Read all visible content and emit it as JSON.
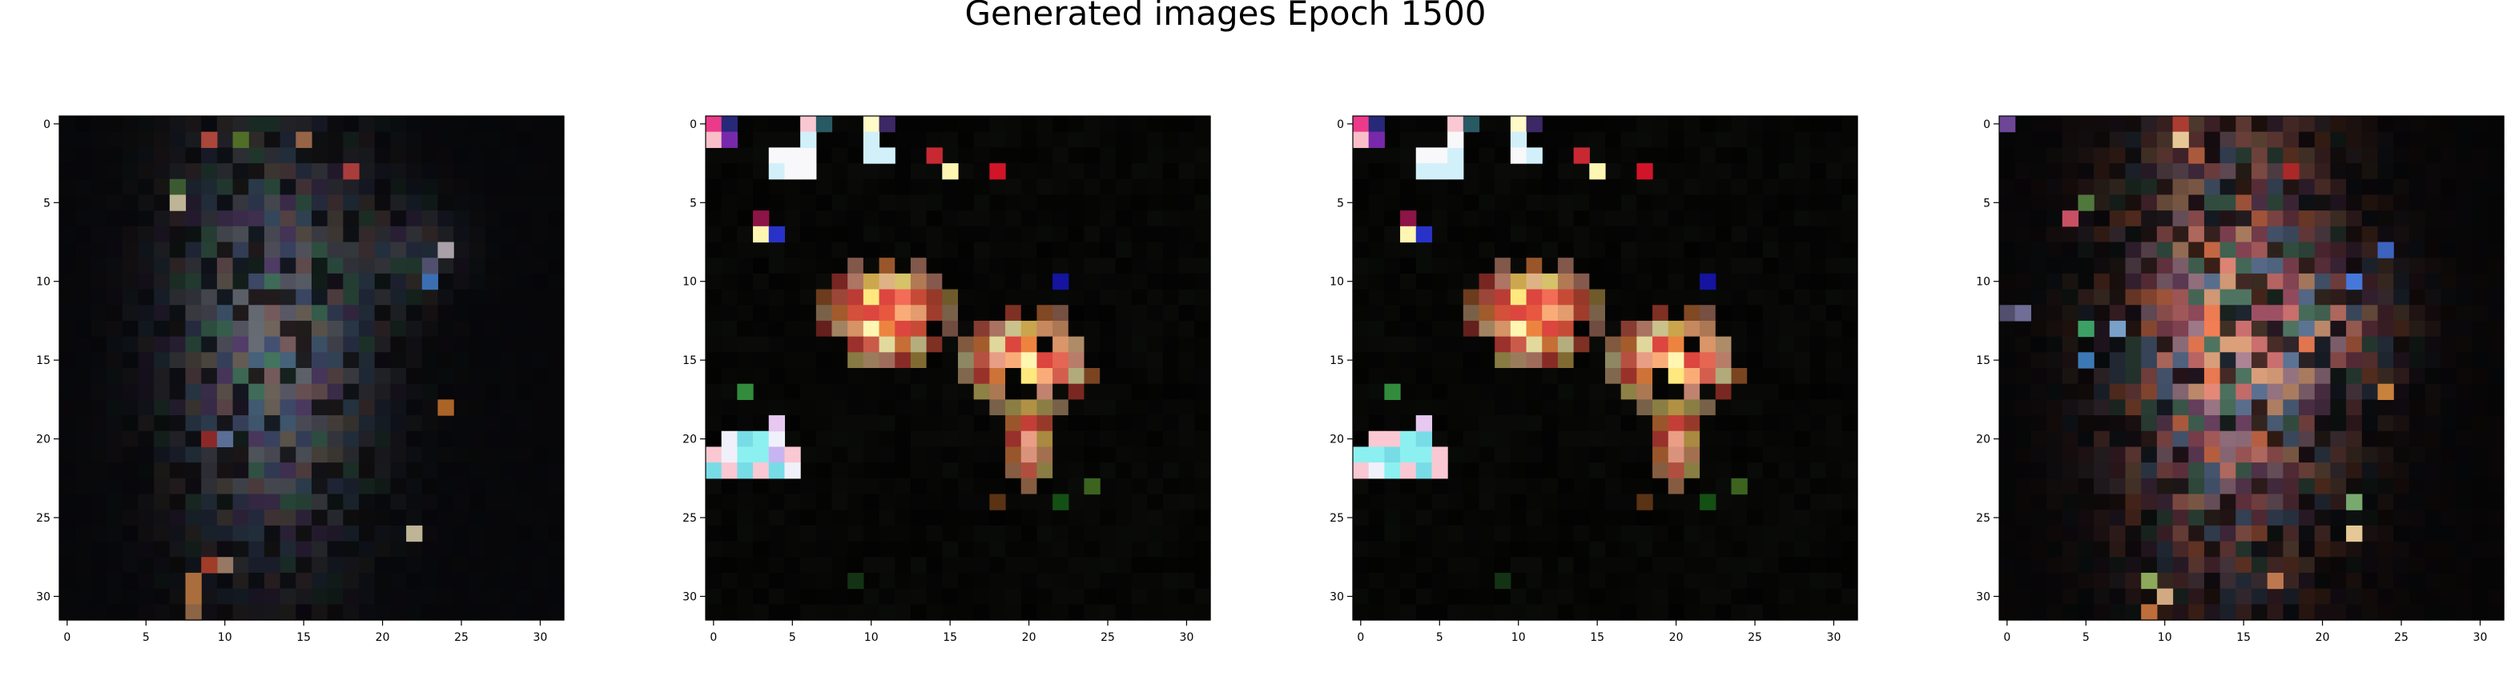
{
  "figure": {
    "title": "Generated images Epoch 1500"
  },
  "axes": {
    "xticks": [
      "0",
      "5",
      "10",
      "15",
      "20",
      "25",
      "30"
    ],
    "yticks": [
      "0",
      "5",
      "10",
      "15",
      "20",
      "25",
      "30"
    ],
    "x_range": [
      -0.5,
      31.5
    ],
    "y_range": [
      31.5,
      -0.5
    ],
    "grid": false
  },
  "images": [
    {
      "name": "generated-image-1",
      "grid_size": 32,
      "style": "dim-figure"
    },
    {
      "name": "generated-image-2",
      "grid_size": 32,
      "style": "bright-blooms"
    },
    {
      "name": "generated-image-3",
      "grid_size": 32,
      "style": "bright-blooms"
    },
    {
      "name": "generated-image-4",
      "grid_size": 32,
      "style": "warm-figure"
    }
  ],
  "colors": {
    "background": "#ffffff",
    "image_base": "#020202",
    "axis": "#000000"
  }
}
